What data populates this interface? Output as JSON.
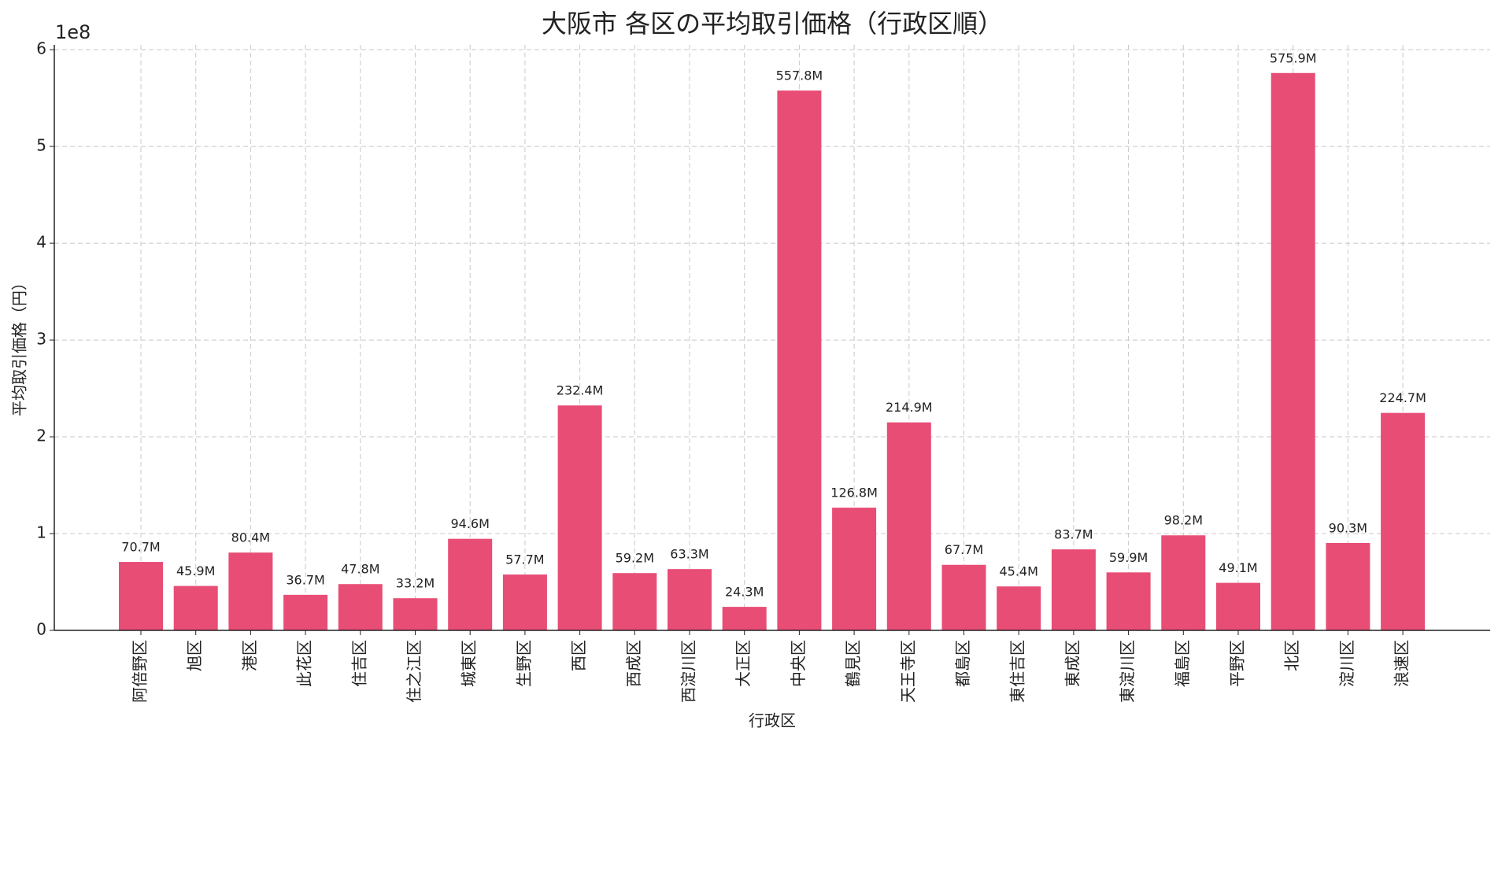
{
  "chart_data": {
    "type": "bar",
    "title": "大阪市 各区の平均取引価格（行政区順）",
    "x_label": "行政区",
    "y_label": "平均取引価格（円）",
    "y_offset_label": "1e8",
    "categories": [
      "阿倍野区",
      "旭区",
      "港区",
      "此花区",
      "住吉区",
      "住之江区",
      "城東区",
      "生野区",
      "西区",
      "西成区",
      "西淀川区",
      "大正区",
      "中央区",
      "鶴見区",
      "天王寺区",
      "都島区",
      "東住吉区",
      "東成区",
      "東淀川区",
      "福島区",
      "平野区",
      "北区",
      "淀川区",
      "浪速区"
    ],
    "values": [
      70700000,
      45900000,
      80400000,
      36700000,
      47800000,
      33200000,
      94600000,
      57700000,
      232400000,
      59200000,
      63300000,
      24300000,
      557800000,
      126800000,
      214900000,
      67700000,
      45400000,
      83700000,
      59900000,
      98200000,
      49100000,
      575900000,
      90300000,
      224700000
    ],
    "value_labels": [
      "70.7M",
      "45.9M",
      "80.4M",
      "36.7M",
      "47.8M",
      "33.2M",
      "94.6M",
      "57.7M",
      "232.4M",
      "59.2M",
      "63.3M",
      "24.3M",
      "557.8M",
      "126.8M",
      "214.9M",
      "67.7M",
      "45.4M",
      "83.7M",
      "59.9M",
      "98.2M",
      "49.1M",
      "575.9M",
      "90.3M",
      "224.7M"
    ],
    "color": "#e84d76",
    "ylim": [
      0,
      605000000
    ],
    "yticks": [
      {
        "value": 0,
        "label": "0"
      },
      {
        "value": 100000000,
        "label": "1"
      },
      {
        "value": 200000000,
        "label": "2"
      },
      {
        "value": 300000000,
        "label": "3"
      },
      {
        "value": 400000000,
        "label": "4"
      },
      {
        "value": 500000000,
        "label": "5"
      },
      {
        "value": 600000000,
        "label": "6"
      }
    ],
    "grid": true
  }
}
